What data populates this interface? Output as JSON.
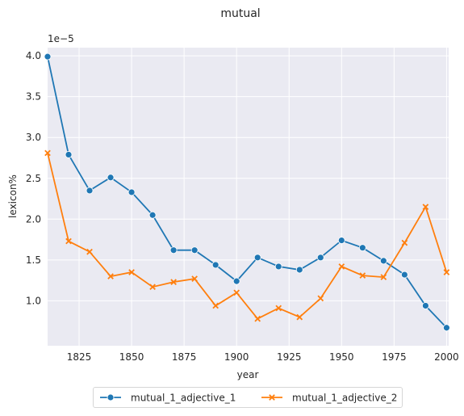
{
  "chart_data": {
    "type": "line",
    "title": "mutual",
    "xlabel": "year",
    "ylabel": "lexicon%",
    "y_offset_text": "1e−5",
    "xlim": [
      1810,
      2001
    ],
    "ylim": [
      0.45,
      4.1
    ],
    "x_ticks": [
      1825,
      1850,
      1875,
      1900,
      1925,
      1950,
      1975,
      2000
    ],
    "y_ticks": [
      1.0,
      1.5,
      2.0,
      2.5,
      3.0,
      3.5,
      4.0
    ],
    "y_tick_labels": [
      "1.0",
      "1.5",
      "2.0",
      "2.5",
      "3.0",
      "3.5",
      "4.0"
    ],
    "grid": true,
    "legend_position": "bottom-center",
    "x": [
      1810,
      1820,
      1830,
      1840,
      1850,
      1860,
      1870,
      1880,
      1890,
      1900,
      1910,
      1920,
      1930,
      1940,
      1950,
      1960,
      1970,
      1980,
      1990,
      2000
    ],
    "series": [
      {
        "name": "mutual_1_adjective_1",
        "color": "#1f77b4",
        "marker": "circle",
        "values": [
          3.99,
          2.79,
          2.35,
          2.51,
          2.33,
          2.05,
          1.62,
          1.62,
          1.44,
          1.24,
          1.53,
          1.42,
          1.38,
          1.53,
          1.74,
          1.65,
          1.49,
          1.32,
          0.94,
          0.67
        ]
      },
      {
        "name": "mutual_1_adjective_2",
        "color": "#ff7f0e",
        "marker": "x",
        "values": [
          2.81,
          1.73,
          1.6,
          1.3,
          1.35,
          1.17,
          1.23,
          1.27,
          0.94,
          1.1,
          0.78,
          0.91,
          0.8,
          1.03,
          1.42,
          1.31,
          1.29,
          1.71,
          2.15,
          1.35
        ]
      }
    ]
  }
}
